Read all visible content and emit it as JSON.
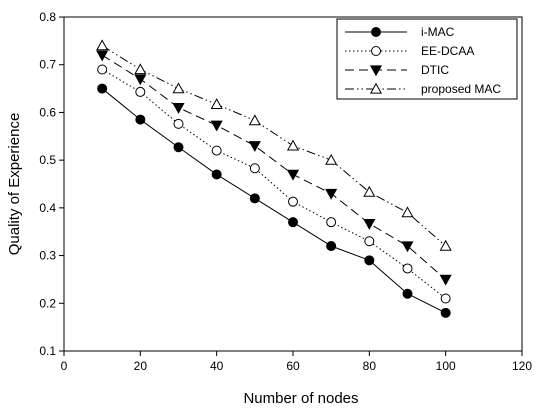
{
  "chart_data": {
    "type": "line",
    "title": "",
    "xlabel": "Number of nodes",
    "ylabel": "Quality of Experience",
    "xlim": [
      0,
      120
    ],
    "ylim": [
      0.1,
      0.8
    ],
    "xticks": [
      0,
      20,
      40,
      60,
      80,
      100,
      120
    ],
    "yticks": [
      0.1,
      0.2,
      0.3,
      0.4,
      0.5,
      0.6,
      0.7,
      0.8
    ],
    "grid": false,
    "legend_position": "top-right",
    "x": [
      10,
      20,
      30,
      40,
      50,
      60,
      70,
      80,
      90,
      100
    ],
    "series": [
      {
        "name": "i-MAC",
        "marker": "filled-circle",
        "line": "solid",
        "values": [
          0.65,
          0.585,
          0.527,
          0.47,
          0.42,
          0.37,
          0.32,
          0.29,
          0.22,
          0.18
        ]
      },
      {
        "name": "EE-DCAA",
        "marker": "open-circle",
        "line": "dotted",
        "values": [
          0.69,
          0.643,
          0.576,
          0.52,
          0.483,
          0.413,
          0.37,
          0.33,
          0.273,
          0.21
        ]
      },
      {
        "name": "DTIC",
        "marker": "filled-triangle-down",
        "line": "dashed",
        "values": [
          0.72,
          0.67,
          0.61,
          0.573,
          0.53,
          0.47,
          0.43,
          0.367,
          0.32,
          0.25
        ]
      },
      {
        "name": "proposed MAC",
        "marker": "open-triangle-up",
        "line": "dash-dot-dot",
        "values": [
          0.74,
          0.69,
          0.65,
          0.617,
          0.583,
          0.53,
          0.5,
          0.433,
          0.39,
          0.32
        ]
      }
    ]
  }
}
